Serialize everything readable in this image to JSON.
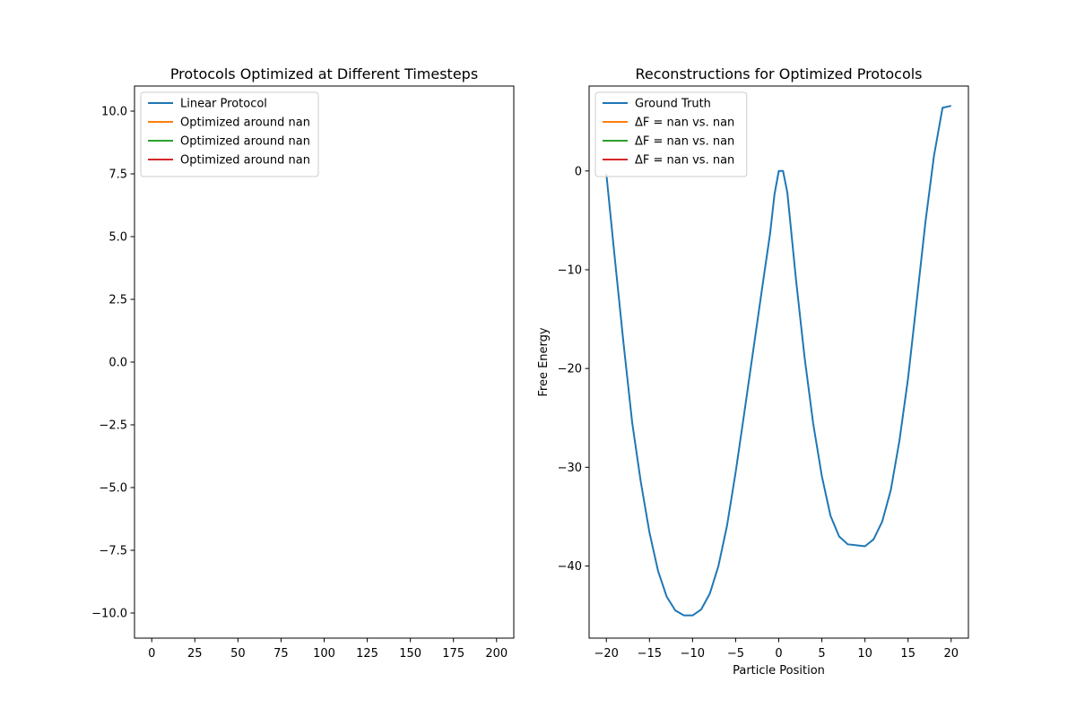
{
  "chart_data": [
    {
      "type": "line",
      "title": "Protocols Optimized at Different Timesteps",
      "xlabel": "",
      "ylabel": "",
      "xlim": [
        -10,
        210
      ],
      "ylim": [
        -11,
        11
      ],
      "xticks": [
        0,
        25,
        50,
        75,
        100,
        125,
        150,
        175,
        200
      ],
      "xtick_labels": [
        "0",
        "25",
        "50",
        "75",
        "100",
        "125",
        "150",
        "175",
        "200"
      ],
      "yticks": [
        10.0,
        7.5,
        5.0,
        2.5,
        0.0,
        -2.5,
        -5.0,
        -7.5,
        -10.0
      ],
      "ytick_labels": [
        "10.0",
        "7.5",
        "5.0",
        "2.5",
        "0.0",
        "−2.5",
        "−5.0",
        "−7.5",
        "−10.0"
      ],
      "grid": false,
      "legend_position": "upper-left",
      "series": [
        {
          "name": "Linear Protocol",
          "color": "#1f77b4",
          "x": [],
          "y": []
        },
        {
          "name": "Optimized around nan",
          "color": "#ff7f0e",
          "x": [],
          "y": []
        },
        {
          "name": "Optimized around nan",
          "color": "#2ca02c",
          "x": [],
          "y": []
        },
        {
          "name": "Optimized around nan",
          "color": "#d62728",
          "x": [],
          "y": []
        }
      ]
    },
    {
      "type": "line",
      "title": "Reconstructions for Optimized Protocols",
      "xlabel": "Particle Position",
      "ylabel": "Free Energy",
      "xlim": [
        -22,
        22
      ],
      "ylim": [
        -47.3,
        8.6
      ],
      "xticks": [
        -20,
        -15,
        -10,
        -5,
        0,
        5,
        10,
        15,
        20
      ],
      "xtick_labels": [
        "−20",
        "−15",
        "−10",
        "−5",
        "0",
        "5",
        "10",
        "15",
        "20"
      ],
      "yticks": [
        0,
        -10,
        -20,
        -30,
        -40
      ],
      "ytick_labels": [
        "0",
        "−10",
        "−20",
        "−30",
        "−40"
      ],
      "grid": false,
      "legend_position": "upper-left",
      "series": [
        {
          "name": "Ground Truth",
          "color": "#1f77b4",
          "x": [
            -20,
            -19,
            -18,
            -17,
            -16,
            -15,
            -14,
            -13,
            -12,
            -11,
            -10,
            -9,
            -8,
            -7,
            -6,
            -5,
            -4,
            -3,
            -2,
            -1,
            -0.5,
            0,
            0.5,
            1,
            2,
            3,
            4,
            5,
            6,
            7,
            8,
            9,
            10,
            11,
            12,
            13,
            14,
            15,
            16,
            17,
            18,
            19,
            20
          ],
          "y": [
            -0.3,
            -9.0,
            -17.5,
            -25.5,
            -31.5,
            -36.6,
            -40.5,
            -43.1,
            -44.5,
            -45.0,
            -45.0,
            -44.4,
            -42.8,
            -40.0,
            -35.9,
            -30.5,
            -24.5,
            -18.4,
            -12.3,
            -6.3,
            -2.4,
            0.0,
            0.0,
            -2.2,
            -11.0,
            -18.9,
            -25.6,
            -30.9,
            -34.9,
            -37.0,
            -37.8,
            -37.9,
            -38.0,
            -37.3,
            -35.5,
            -32.3,
            -27.3,
            -21.0,
            -13.2,
            -5.3,
            1.5,
            6.4,
            6.6
          ]
        },
        {
          "name": "ΔF = nan vs. nan",
          "color": "#ff7f0e",
          "x": [],
          "y": []
        },
        {
          "name": "ΔF = nan vs. nan",
          "color": "#2ca02c",
          "x": [],
          "y": []
        },
        {
          "name": "ΔF = nan vs. nan",
          "color": "#d62728",
          "x": [],
          "y": []
        }
      ]
    }
  ]
}
